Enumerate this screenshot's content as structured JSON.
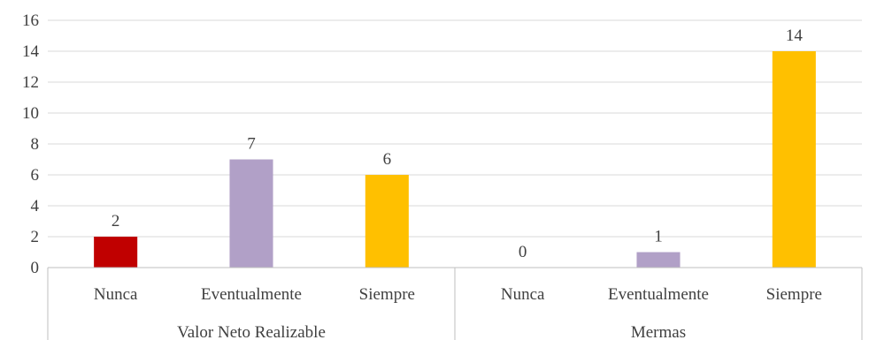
{
  "chart_data": {
    "type": "bar",
    "groups": [
      {
        "label": "Valor Neto Realizable",
        "categories": [
          "Nunca",
          "Eventualmente",
          "Siempre"
        ],
        "values": [
          2,
          7,
          6
        ],
        "colors": [
          "#c00000",
          "#b1a0c7",
          "#ffc000"
        ]
      },
      {
        "label": "Mermas",
        "categories": [
          "Nunca",
          "Eventualmente",
          "Siempre"
        ],
        "values": [
          0,
          1,
          14
        ],
        "colors": [
          "#c00000",
          "#b1a0c7",
          "#ffc000"
        ]
      }
    ],
    "yticks": [
      "0",
      "2",
      "4",
      "6",
      "8",
      "10",
      "12",
      "14",
      "16"
    ],
    "ylim": [
      0,
      16
    ],
    "grid": true,
    "legend": "none",
    "data_labels": true
  }
}
